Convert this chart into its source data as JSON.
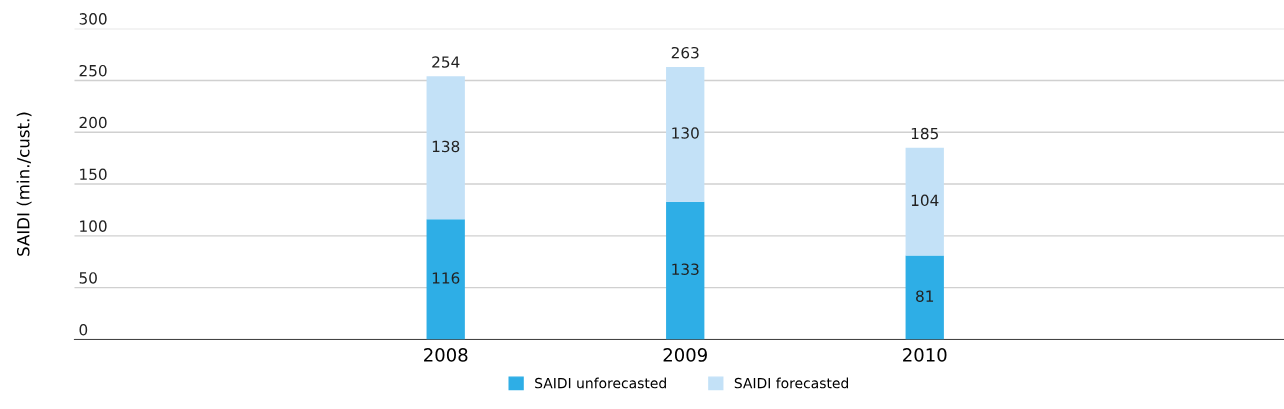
{
  "chart_data": {
    "type": "bar",
    "stacked": true,
    "ylabel": "SAIDI (min./cust.)",
    "categories": [
      "2008",
      "2009",
      "2010"
    ],
    "series": [
      {
        "name": "SAIDI unforecasted",
        "color": "#2eaee6",
        "values": [
          116,
          133,
          81
        ]
      },
      {
        "name": "SAIDI forecasted",
        "color": "#c3e1f7",
        "values": [
          138,
          130,
          104
        ]
      }
    ],
    "totals": [
      "254",
      "263",
      "185"
    ],
    "data_labels": true,
    "ylim": [
      0,
      300
    ],
    "yticks": [
      0,
      50,
      100,
      150,
      200,
      250,
      300
    ],
    "grid": "y",
    "legend": "bottom"
  }
}
